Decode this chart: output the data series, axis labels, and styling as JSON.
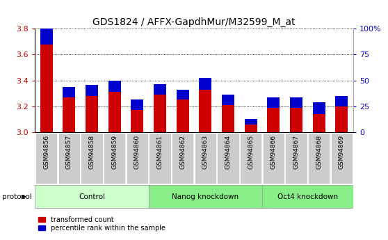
{
  "title": "GDS1824 / AFFX-GapdhMur/M32599_M_at",
  "samples": [
    "GSM94856",
    "GSM94857",
    "GSM94858",
    "GSM94859",
    "GSM94860",
    "GSM94861",
    "GSM94862",
    "GSM94863",
    "GSM94864",
    "GSM94865",
    "GSM94866",
    "GSM94867",
    "GSM94868",
    "GSM94869"
  ],
  "red_values": [
    3.68,
    3.27,
    3.28,
    3.31,
    3.17,
    3.29,
    3.25,
    3.33,
    3.21,
    3.06,
    3.19,
    3.19,
    3.14,
    3.2
  ],
  "blue_values_pct": [
    20,
    10,
    11,
    11,
    10,
    10,
    10,
    11,
    10,
    5,
    10,
    10,
    11,
    10
  ],
  "ymin": 3.0,
  "ymax": 3.8,
  "y2min": 0,
  "y2max": 100,
  "yticks": [
    3.0,
    3.2,
    3.4,
    3.6,
    3.8
  ],
  "y2ticks": [
    0,
    25,
    50,
    75,
    100
  ],
  "y2ticklabels": [
    "0",
    "25",
    "50",
    "75",
    "100%"
  ],
  "bar_color": "#cc0000",
  "blue_color": "#0000cc",
  "bg_color": "#ffffff",
  "ticklabel_bg": "#cccccc",
  "group_control": [
    0,
    1,
    2,
    3,
    4
  ],
  "group_nanog": [
    5,
    6,
    7,
    8,
    9
  ],
  "group_oct4": [
    10,
    11,
    12,
    13
  ],
  "group_labels": [
    "Control",
    "Nanog knockdown",
    "Oct4 knockdown"
  ],
  "group_color_light": "#ccffcc",
  "group_color_mid": "#88ee88",
  "group_color_bright": "#44dd44",
  "protocol_label": "protocol",
  "bar_width": 0.55,
  "legend_red": "transformed count",
  "legend_blue": "percentile rank within the sample",
  "title_fontsize": 10,
  "axis_label_color_left": "#cc0000",
  "axis_label_color_right": "#0000cc"
}
